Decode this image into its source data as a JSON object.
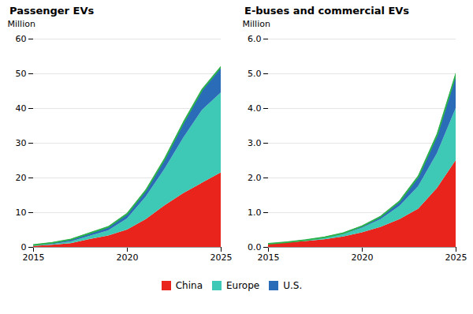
{
  "chart_data": [
    {
      "type": "area",
      "stacked": true,
      "title": "Passenger EVs",
      "ylabel": "Million",
      "x": [
        2015,
        2016,
        2017,
        2018,
        2019,
        2020,
        2021,
        2022,
        2023,
        2024,
        2025
      ],
      "series": [
        {
          "name": "China",
          "color": "#e8241c",
          "values": [
            0.3,
            0.6,
            1.1,
            2.3,
            3.3,
            5.0,
            8.0,
            12.0,
            15.5,
            18.5,
            21.5
          ]
        },
        {
          "name": "Europe",
          "color": "#3ec9b6",
          "values": [
            0.1,
            0.2,
            0.5,
            0.9,
            1.5,
            3.2,
            6.5,
            10.5,
            16.0,
            21.0,
            23.0
          ]
        },
        {
          "name": "U.S.",
          "color": "#2b6cb8",
          "values": [
            0.3,
            0.5,
            0.7,
            0.9,
            1.1,
            1.5,
            2.0,
            3.0,
            4.5,
            6.0,
            7.5
          ]
        }
      ],
      "color": "#2db34a",
      "xlim": [
        2015,
        2025
      ],
      "xticks": [
        2015,
        2020,
        2025
      ],
      "ylim": [
        0,
        60
      ],
      "yticks": [
        0,
        10,
        20,
        30,
        40,
        50,
        60
      ],
      "grid": true,
      "legend": "bottom"
    },
    {
      "type": "area",
      "stacked": true,
      "title": "E-buses and commercial EVs",
      "ylabel": "Million",
      "x": [
        2015,
        2016,
        2017,
        2018,
        2019,
        2020,
        2021,
        2022,
        2023,
        2024,
        2025
      ],
      "series": [
        {
          "name": "China",
          "color": "#e8241c",
          "values": [
            0.1,
            0.13,
            0.17,
            0.22,
            0.3,
            0.42,
            0.58,
            0.8,
            1.1,
            1.7,
            2.5
          ]
        },
        {
          "name": "Europe",
          "color": "#3ec9b6",
          "values": [
            0.0,
            0.01,
            0.02,
            0.04,
            0.07,
            0.13,
            0.22,
            0.38,
            0.65,
            1.0,
            1.5
          ]
        },
        {
          "name": "U.S.",
          "color": "#2b6cb8",
          "values": [
            0.0,
            0.01,
            0.02,
            0.03,
            0.04,
            0.06,
            0.09,
            0.15,
            0.3,
            0.55,
            1.0
          ]
        }
      ],
      "color": "#2db34a",
      "xlim": [
        2015,
        2025
      ],
      "xticks": [
        2015,
        2020,
        2025
      ],
      "ylim": [
        0,
        6
      ],
      "yticks": [
        0,
        1,
        2,
        3,
        4,
        5,
        6
      ],
      "grid": true,
      "legend": "bottom"
    }
  ]
}
